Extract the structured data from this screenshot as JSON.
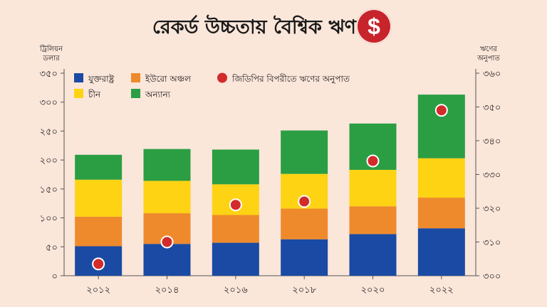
{
  "title": "রেকর্ড উচ্চতায় বৈশ্বিক ঋণ",
  "icon": "dollar-icon",
  "colors": {
    "usa": "#1a4aa3",
    "euro": "#ef8a2c",
    "china": "#fdd314",
    "other": "#2b9e43",
    "ratio": "#d22b2b",
    "background": "#fbe6da"
  },
  "chart_data": {
    "type": "bar",
    "stacked": true,
    "title": "রেকর্ড উচ্চতায় বৈশ্বিক ঋণ",
    "ylabel": "ট্রিলিয়ন ডলার",
    "y2label": "ঋণের অনুপাত",
    "categories": [
      "২০১২",
      "২০১৪",
      "২০১৬",
      "২০১৮",
      "২০২০",
      "২০২২"
    ],
    "ylim": [
      0,
      350
    ],
    "yticks": [
      "০",
      "৫০",
      "১০০",
      "১৫০",
      "২০০",
      "২৫০",
      "৩০০",
      "৩৫০"
    ],
    "y2lim": [
      300,
      360
    ],
    "y2ticks": [
      "৩০০",
      "৩১০",
      "৩২০",
      "৩৩০",
      "৩৪০",
      "৩৫০",
      "৩৬০"
    ],
    "series": [
      {
        "key": "usa",
        "name": "যুক্তরাষ্ট্র",
        "values": [
          51,
          55,
          57,
          63,
          72,
          82
        ]
      },
      {
        "key": "euro",
        "name": "ইউরো অঞ্চল",
        "values": [
          51,
          53,
          48,
          53,
          48,
          53
        ]
      },
      {
        "key": "china",
        "name": "চীন",
        "values": [
          64,
          56,
          53,
          60,
          63,
          68
        ]
      },
      {
        "key": "other",
        "name": "অন্যান্য",
        "values": [
          43,
          55,
          60,
          75,
          80,
          110
        ]
      }
    ],
    "line_series": {
      "key": "ratio",
      "name": "জিডিপির বিপরীতে ঋণের অনুপাত",
      "axis": "right",
      "values": [
        303.5,
        310,
        321,
        322,
        334,
        349
      ]
    },
    "legend": "top-left, inside plot"
  }
}
